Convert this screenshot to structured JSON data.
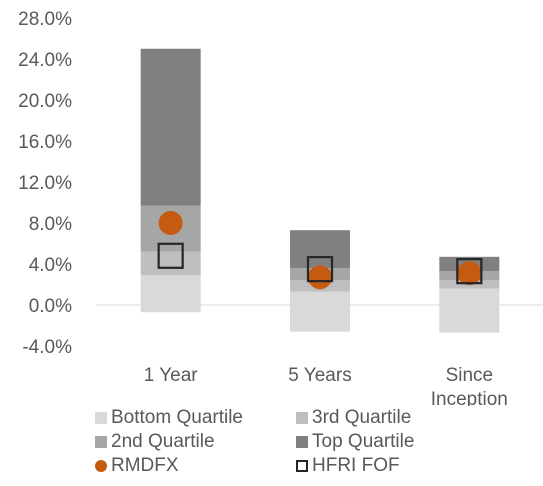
{
  "chart_data": {
    "type": "bar",
    "subtype": "stacked-range-with-markers",
    "categories": [
      "1 Year",
      "5 Years",
      "Since\nInception"
    ],
    "ylim": [
      -4,
      28
    ],
    "yticks": [
      -4,
      0,
      4,
      8,
      12,
      16,
      20,
      24,
      28
    ],
    "ytick_labels": [
      "-4.0%",
      "0.0%",
      "4.0%",
      "8.0%",
      "12.0%",
      "16.0%",
      "20.0%",
      "24.0%",
      "28.0%"
    ],
    "grid": false,
    "legend_position": "bottom",
    "ranges": [
      {
        "name": "Bottom Quartile",
        "color": "#d9d9d9",
        "low": [
          -0.7,
          -2.6,
          -2.7
        ],
        "high": [
          2.9,
          1.3,
          1.6
        ]
      },
      {
        "name": "3rd Quartile",
        "color": "#bfbfbf",
        "low": [
          2.9,
          1.3,
          1.6
        ],
        "high": [
          5.2,
          2.4,
          2.4
        ]
      },
      {
        "name": "2nd Quartile",
        "color": "#a6a6a6",
        "low": [
          5.2,
          2.4,
          2.4
        ],
        "high": [
          9.7,
          3.6,
          3.3
        ]
      },
      {
        "name": "Top Quartile",
        "color": "#808080",
        "low": [
          9.7,
          3.6,
          3.3
        ],
        "high": [
          25.0,
          7.3,
          4.7
        ]
      }
    ],
    "markers": [
      {
        "name": "RMDFX",
        "shape": "circle",
        "color": "#c55a11",
        "values": [
          8.0,
          2.7,
          3.1
        ]
      },
      {
        "name": "HFRI FOF",
        "shape": "square",
        "color": "#262626",
        "values": [
          4.8,
          3.5,
          3.3
        ]
      }
    ]
  }
}
